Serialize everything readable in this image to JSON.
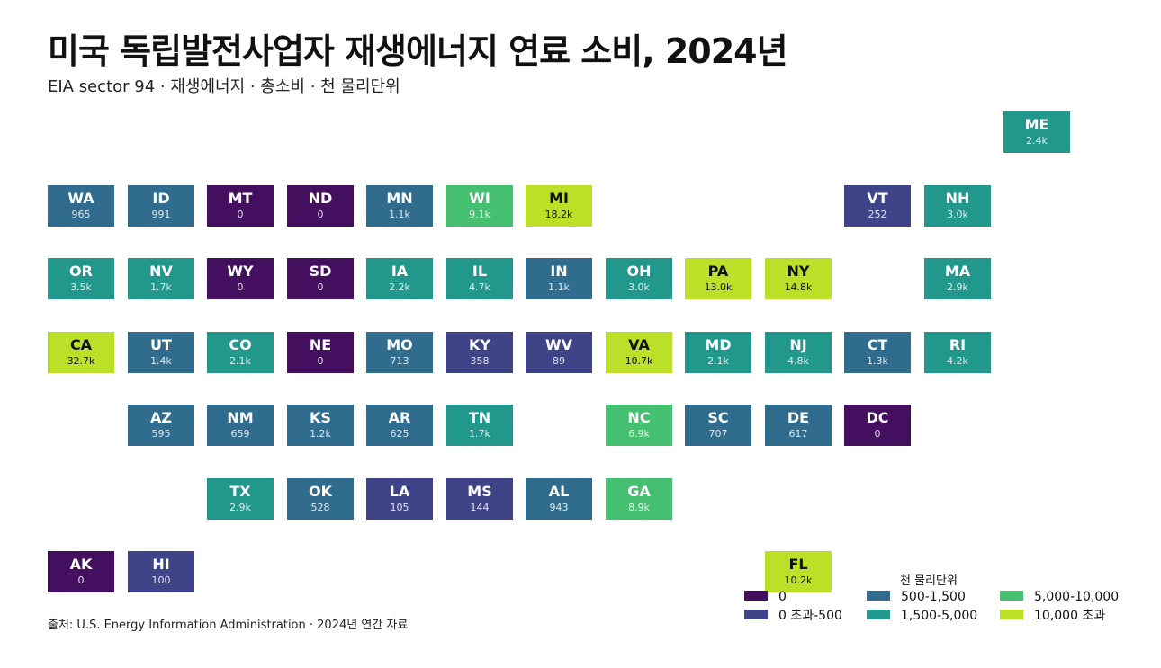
{
  "chart_data": {
    "type": "tile-grid-map",
    "title": "미국 독립발전사업자 재생에너지 연료 소비, 2024년",
    "subtitle": "EIA sector 94 · 재생에너지 · 총소비 · 천 물리단위",
    "source": "출처: U.S. Energy Information Administration · 2024년 연간 자료",
    "legend": {
      "title": "천 물리단위",
      "bins": [
        {
          "label": "0",
          "color": "#440f5f"
        },
        {
          "label": "0 초과-500",
          "color": "#3f4488"
        },
        {
          "label": "500-1,500",
          "color": "#2f6c8e"
        },
        {
          "label": "1,500-5,000",
          "color": "#22978b"
        },
        {
          "label": "5,000-10,000",
          "color": "#45bf70"
        },
        {
          "label": "10,000 초과",
          "color": "#bcdf27"
        }
      ]
    },
    "states": [
      {
        "abbr": "ME",
        "label": "2.4k",
        "value": 2400,
        "bin": 3,
        "row": 0,
        "col": 12
      },
      {
        "abbr": "WA",
        "label": "965",
        "value": 965,
        "bin": 2,
        "row": 1,
        "col": 0
      },
      {
        "abbr": "ID",
        "label": "991",
        "value": 991,
        "bin": 2,
        "row": 1,
        "col": 1
      },
      {
        "abbr": "MT",
        "label": "0",
        "value": 0,
        "bin": 0,
        "row": 1,
        "col": 2
      },
      {
        "abbr": "ND",
        "label": "0",
        "value": 0,
        "bin": 0,
        "row": 1,
        "col": 3
      },
      {
        "abbr": "MN",
        "label": "1.1k",
        "value": 1100,
        "bin": 2,
        "row": 1,
        "col": 4
      },
      {
        "abbr": "WI",
        "label": "9.1k",
        "value": 9100,
        "bin": 4,
        "row": 1,
        "col": 5
      },
      {
        "abbr": "MI",
        "label": "18.2k",
        "value": 18200,
        "bin": 5,
        "row": 1,
        "col": 6
      },
      {
        "abbr": "VT",
        "label": "252",
        "value": 252,
        "bin": 1,
        "row": 1,
        "col": 10
      },
      {
        "abbr": "NH",
        "label": "3.0k",
        "value": 3000,
        "bin": 3,
        "row": 1,
        "col": 11
      },
      {
        "abbr": "OR",
        "label": "3.5k",
        "value": 3500,
        "bin": 3,
        "row": 2,
        "col": 0
      },
      {
        "abbr": "NV",
        "label": "1.7k",
        "value": 1700,
        "bin": 3,
        "row": 2,
        "col": 1
      },
      {
        "abbr": "WY",
        "label": "0",
        "value": 0,
        "bin": 0,
        "row": 2,
        "col": 2
      },
      {
        "abbr": "SD",
        "label": "0",
        "value": 0,
        "bin": 0,
        "row": 2,
        "col": 3
      },
      {
        "abbr": "IA",
        "label": "2.2k",
        "value": 2200,
        "bin": 3,
        "row": 2,
        "col": 4
      },
      {
        "abbr": "IL",
        "label": "4.7k",
        "value": 4700,
        "bin": 3,
        "row": 2,
        "col": 5
      },
      {
        "abbr": "IN",
        "label": "1.1k",
        "value": 1100,
        "bin": 2,
        "row": 2,
        "col": 6
      },
      {
        "abbr": "OH",
        "label": "3.0k",
        "value": 3000,
        "bin": 3,
        "row": 2,
        "col": 7
      },
      {
        "abbr": "PA",
        "label": "13.0k",
        "value": 13000,
        "bin": 5,
        "row": 2,
        "col": 8
      },
      {
        "abbr": "NY",
        "label": "14.8k",
        "value": 14800,
        "bin": 5,
        "row": 2,
        "col": 9
      },
      {
        "abbr": "MA",
        "label": "2.9k",
        "value": 2900,
        "bin": 3,
        "row": 2,
        "col": 11
      },
      {
        "abbr": "CA",
        "label": "32.7k",
        "value": 32700,
        "bin": 5,
        "row": 3,
        "col": 0
      },
      {
        "abbr": "UT",
        "label": "1.4k",
        "value": 1400,
        "bin": 2,
        "row": 3,
        "col": 1
      },
      {
        "abbr": "CO",
        "label": "2.1k",
        "value": 2100,
        "bin": 3,
        "row": 3,
        "col": 2
      },
      {
        "abbr": "NE",
        "label": "0",
        "value": 0,
        "bin": 0,
        "row": 3,
        "col": 3
      },
      {
        "abbr": "MO",
        "label": "713",
        "value": 713,
        "bin": 2,
        "row": 3,
        "col": 4
      },
      {
        "abbr": "KY",
        "label": "358",
        "value": 358,
        "bin": 1,
        "row": 3,
        "col": 5
      },
      {
        "abbr": "WV",
        "label": "89",
        "value": 89,
        "bin": 1,
        "row": 3,
        "col": 6
      },
      {
        "abbr": "VA",
        "label": "10.7k",
        "value": 10700,
        "bin": 5,
        "row": 3,
        "col": 7
      },
      {
        "abbr": "MD",
        "label": "2.1k",
        "value": 2100,
        "bin": 3,
        "row": 3,
        "col": 8
      },
      {
        "abbr": "NJ",
        "label": "4.8k",
        "value": 4800,
        "bin": 3,
        "row": 3,
        "col": 9
      },
      {
        "abbr": "CT",
        "label": "1.3k",
        "value": 1300,
        "bin": 2,
        "row": 3,
        "col": 10
      },
      {
        "abbr": "RI",
        "label": "4.2k",
        "value": 4200,
        "bin": 3,
        "row": 3,
        "col": 11
      },
      {
        "abbr": "AZ",
        "label": "595",
        "value": 595,
        "bin": 2,
        "row": 4,
        "col": 1
      },
      {
        "abbr": "NM",
        "label": "659",
        "value": 659,
        "bin": 2,
        "row": 4,
        "col": 2
      },
      {
        "abbr": "KS",
        "label": "1.2k",
        "value": 1200,
        "bin": 2,
        "row": 4,
        "col": 3
      },
      {
        "abbr": "AR",
        "label": "625",
        "value": 625,
        "bin": 2,
        "row": 4,
        "col": 4
      },
      {
        "abbr": "TN",
        "label": "1.7k",
        "value": 1700,
        "bin": 3,
        "row": 4,
        "col": 5
      },
      {
        "abbr": "NC",
        "label": "6.9k",
        "value": 6900,
        "bin": 4,
        "row": 4,
        "col": 7
      },
      {
        "abbr": "SC",
        "label": "707",
        "value": 707,
        "bin": 2,
        "row": 4,
        "col": 8
      },
      {
        "abbr": "DE",
        "label": "617",
        "value": 617,
        "bin": 2,
        "row": 4,
        "col": 9
      },
      {
        "abbr": "DC",
        "label": "0",
        "value": 0,
        "bin": 0,
        "row": 4,
        "col": 10
      },
      {
        "abbr": "TX",
        "label": "2.9k",
        "value": 2900,
        "bin": 3,
        "row": 5,
        "col": 2
      },
      {
        "abbr": "OK",
        "label": "528",
        "value": 528,
        "bin": 2,
        "row": 5,
        "col": 3
      },
      {
        "abbr": "LA",
        "label": "105",
        "value": 105,
        "bin": 1,
        "row": 5,
        "col": 4
      },
      {
        "abbr": "MS",
        "label": "144",
        "value": 144,
        "bin": 1,
        "row": 5,
        "col": 5
      },
      {
        "abbr": "AL",
        "label": "943",
        "value": 943,
        "bin": 2,
        "row": 5,
        "col": 6
      },
      {
        "abbr": "GA",
        "label": "8.9k",
        "value": 8900,
        "bin": 4,
        "row": 5,
        "col": 7
      },
      {
        "abbr": "AK",
        "label": "0",
        "value": 0,
        "bin": 0,
        "row": 6,
        "col": 0
      },
      {
        "abbr": "HI",
        "label": "100",
        "value": 100,
        "bin": 1,
        "row": 6,
        "col": 1
      },
      {
        "abbr": "FL",
        "label": "10.2k",
        "value": 10200,
        "bin": 5,
        "row": 6,
        "col": 9
      }
    ]
  }
}
